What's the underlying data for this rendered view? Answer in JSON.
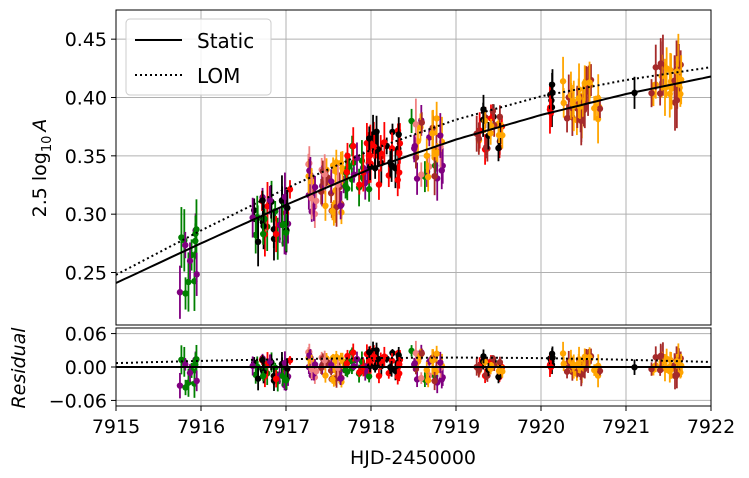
{
  "chart_data": [
    {
      "type": "scatter",
      "panel": "main",
      "xlim": [
        7915,
        7922
      ],
      "ylim": [
        0.205,
        0.475
      ],
      "ylabel_html": "2.5 log<sub>10</sub> A",
      "ylabel_parts": [
        "2.5 log",
        "10",
        "A"
      ],
      "yticks": [
        0.25,
        0.3,
        0.35,
        0.4,
        0.45
      ],
      "ytick_labels": [
        "0.25",
        "0.30",
        "0.35",
        "0.40",
        "0.45"
      ],
      "grid": true,
      "legend": {
        "placement": "top-left",
        "entries": [
          {
            "label": "Static",
            "style": "solid"
          },
          {
            "label": "LOM",
            "style": "dotted"
          }
        ]
      },
      "models": {
        "static": {
          "x": [
            7915,
            7916,
            7917,
            7918,
            7919,
            7920,
            7921,
            7922
          ],
          "y": [
            0.241,
            0.275,
            0.308,
            0.339,
            0.364,
            0.385,
            0.403,
            0.418
          ]
        },
        "lom": {
          "x": [
            7915,
            7916,
            7917,
            7918,
            7919,
            7920,
            7921,
            7922
          ],
          "y": [
            0.248,
            0.286,
            0.322,
            0.355,
            0.381,
            0.401,
            0.415,
            0.426
          ]
        }
      },
      "marker_colors": [
        "#008000",
        "#800080",
        "#ff0000",
        "#000000",
        "#ffa500",
        "#f08080",
        "#a52a2a"
      ],
      "clusters": [
        {
          "x0": 7915.75,
          "x1": 7915.95,
          "ymin": 0.23,
          "ymax": 0.29,
          "err": 0.018,
          "colors": [
            "#008000",
            "#800080"
          ],
          "n": 14
        },
        {
          "x0": 7916.6,
          "x1": 7917.05,
          "ymin": 0.275,
          "ymax": 0.325,
          "err": 0.015,
          "colors": [
            "#008000",
            "#800080",
            "#000000",
            "#ff0000"
          ],
          "n": 40
        },
        {
          "x0": 7917.25,
          "x1": 7917.7,
          "ymin": 0.3,
          "ymax": 0.345,
          "err": 0.012,
          "colors": [
            "#a52a2a",
            "#ffa500",
            "#800080",
            "#f08080"
          ],
          "n": 44
        },
        {
          "x0": 7917.7,
          "x1": 7918.0,
          "ymin": 0.32,
          "ymax": 0.36,
          "err": 0.012,
          "colors": [
            "#800080",
            "#008000",
            "#ff0000"
          ],
          "n": 24
        },
        {
          "x0": 7917.95,
          "x1": 7918.35,
          "ymin": 0.325,
          "ymax": 0.375,
          "err": 0.012,
          "colors": [
            "#000000",
            "#ff0000"
          ],
          "n": 34
        },
        {
          "x0": 7918.45,
          "x1": 7918.85,
          "ymin": 0.33,
          "ymax": 0.385,
          "err": 0.015,
          "colors": [
            "#ffa500",
            "#f08080",
            "#800080",
            "#008000",
            "#a52a2a"
          ],
          "n": 32
        },
        {
          "x0": 7919.2,
          "x1": 7919.55,
          "ymin": 0.355,
          "ymax": 0.39,
          "err": 0.012,
          "colors": [
            "#000000",
            "#ffa500",
            "#ff0000",
            "#a52a2a"
          ],
          "n": 28
        },
        {
          "x0": 7920.1,
          "x1": 7920.15,
          "ymin": 0.385,
          "ymax": 0.415,
          "err": 0.015,
          "colors": [
            "#ff0000",
            "#000000"
          ],
          "n": 8
        },
        {
          "x0": 7920.25,
          "x1": 7920.7,
          "ymin": 0.38,
          "ymax": 0.415,
          "err": 0.015,
          "colors": [
            "#a52a2a",
            "#ffa500"
          ],
          "n": 40
        },
        {
          "x0": 7921.1,
          "x1": 7921.1,
          "ymin": 0.404,
          "ymax": 0.404,
          "err": 0.01,
          "colors": [
            "#000000"
          ],
          "n": 1
        },
        {
          "x0": 7921.3,
          "x1": 7921.65,
          "ymin": 0.395,
          "ymax": 0.43,
          "err": 0.018,
          "colors": [
            "#a52a2a",
            "#ffa500"
          ],
          "n": 34
        }
      ]
    },
    {
      "type": "scatter",
      "panel": "residual",
      "xlim": [
        7915,
        7922
      ],
      "ylim": [
        -0.07,
        0.07
      ],
      "xlabel": "HJD-2450000",
      "ylabel": "Residual",
      "xticks": [
        7915,
        7916,
        7917,
        7918,
        7919,
        7920,
        7921,
        7922
      ],
      "xtick_labels": [
        "7915",
        "7916",
        "7917",
        "7918",
        "7919",
        "7920",
        "7921",
        "7922"
      ],
      "yticks": [
        0.06,
        0.0,
        -0.06
      ],
      "ytick_labels": [
        "0.06",
        "0.00",
        "−0.06"
      ],
      "grid": true,
      "models": {
        "static": {
          "x": [
            7915,
            7922
          ],
          "y": [
            0.0,
            0.0
          ]
        },
        "lom": {
          "x": [
            7915,
            7916,
            7917,
            7918,
            7919,
            7920,
            7921,
            7922
          ],
          "y": [
            0.007,
            0.011,
            0.014,
            0.016,
            0.017,
            0.016,
            0.013,
            0.009
          ]
        }
      }
    }
  ]
}
